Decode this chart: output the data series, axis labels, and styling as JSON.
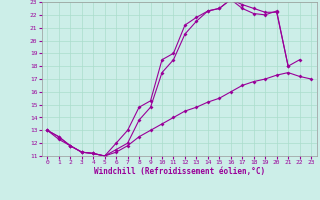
{
  "xlabel": "Windchill (Refroidissement éolien,°C)",
  "xlim": [
    -0.5,
    23.5
  ],
  "ylim": [
    11,
    23
  ],
  "xticks": [
    0,
    1,
    2,
    3,
    4,
    5,
    6,
    7,
    8,
    9,
    10,
    11,
    12,
    13,
    14,
    15,
    16,
    17,
    18,
    19,
    20,
    21,
    22,
    23
  ],
  "yticks": [
    11,
    12,
    13,
    14,
    15,
    16,
    17,
    18,
    19,
    20,
    21,
    22,
    23
  ],
  "line_color": "#990099",
  "background_color": "#cceee8",
  "grid_color": "#aaddcc",
  "line1_x": [
    0,
    1,
    2,
    3,
    4,
    5,
    6,
    7,
    8,
    9,
    10,
    11,
    12,
    13,
    14,
    15,
    16,
    17,
    18,
    19,
    20,
    21,
    22
  ],
  "line1_y": [
    13.0,
    12.5,
    11.8,
    11.3,
    11.2,
    11.0,
    12.0,
    13.0,
    14.8,
    15.3,
    18.5,
    19.0,
    21.2,
    21.8,
    22.3,
    22.5,
    23.2,
    22.8,
    22.5,
    22.2,
    22.2,
    18.0,
    18.5
  ],
  "line2_x": [
    0,
    1,
    2,
    3,
    4,
    5,
    6,
    7,
    8,
    9,
    10,
    11,
    12,
    13,
    14,
    15,
    16,
    17,
    18,
    19,
    20,
    21
  ],
  "line2_y": [
    13.0,
    12.5,
    11.8,
    11.3,
    11.2,
    11.0,
    11.5,
    12.0,
    13.8,
    14.8,
    17.5,
    18.5,
    20.5,
    21.5,
    22.3,
    22.5,
    23.2,
    22.5,
    22.1,
    22.0,
    22.3,
    18.0
  ],
  "line3_x": [
    0,
    1,
    2,
    3,
    4,
    5,
    6,
    7,
    8,
    9,
    10,
    11,
    12,
    13,
    14,
    15,
    16,
    17,
    18,
    19,
    20,
    21,
    22,
    23
  ],
  "line3_y": [
    13.0,
    12.3,
    11.8,
    11.3,
    11.2,
    11.0,
    11.3,
    11.8,
    12.5,
    13.0,
    13.5,
    14.0,
    14.5,
    14.8,
    15.2,
    15.5,
    16.0,
    16.5,
    16.8,
    17.0,
    17.3,
    17.5,
    17.2,
    17.0
  ],
  "marker": "D",
  "markersize": 2.0,
  "linewidth": 0.8
}
